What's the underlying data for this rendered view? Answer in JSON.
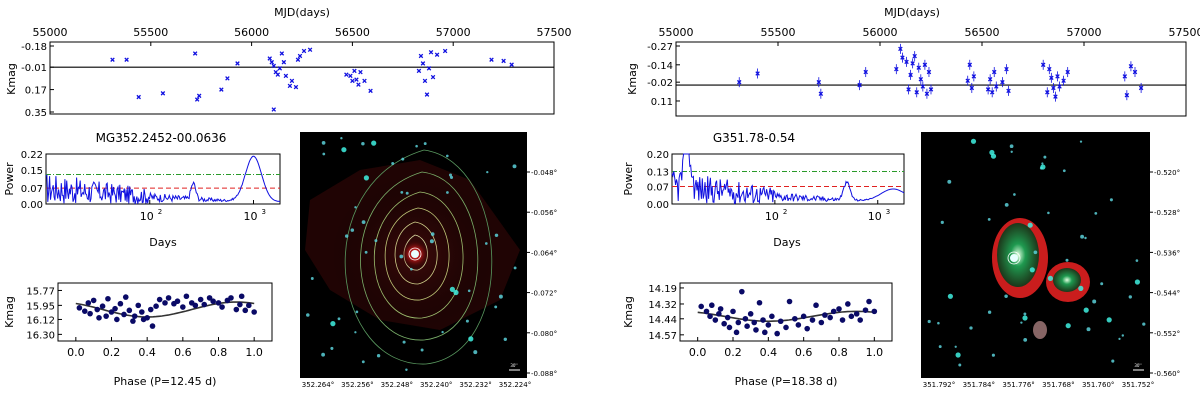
{
  "chart_data": [
    {
      "id": "left_lightcurve",
      "type": "scatter",
      "xlabel": "MJD(days)",
      "ylabel": "Kmag",
      "xlim": [
        55000,
        57500
      ],
      "xticks": [
        55000,
        55500,
        56000,
        56500,
        57000,
        57500
      ],
      "ylim": [
        0.35,
        -0.18
      ],
      "yticks": [
        "-0.18",
        "-0.01",
        "0.17",
        "0.35"
      ],
      "baseline": -0.01,
      "color": "#1010e0",
      "points": [
        [
          55310,
          -0.07
        ],
        [
          55380,
          -0.07
        ],
        [
          55440,
          0.23
        ],
        [
          55560,
          0.2
        ],
        [
          55720,
          -0.12
        ],
        [
          55740,
          0.22
        ],
        [
          55730,
          0.25
        ],
        [
          55850,
          0.17
        ],
        [
          55880,
          0.08
        ],
        [
          55930,
          -0.04
        ],
        [
          56090,
          -0.08
        ],
        [
          56100,
          -0.05
        ],
        [
          56110,
          -0.02
        ],
        [
          56120,
          0.03
        ],
        [
          56130,
          0.05
        ],
        [
          56140,
          0.0
        ],
        [
          56110,
          0.33
        ],
        [
          56150,
          -0.12
        ],
        [
          56160,
          -0.05
        ],
        [
          56170,
          0.06
        ],
        [
          56190,
          0.14
        ],
        [
          56200,
          0.1
        ],
        [
          56220,
          0.15
        ],
        [
          56230,
          -0.07
        ],
        [
          56240,
          -0.1
        ],
        [
          56260,
          -0.14
        ],
        [
          56290,
          -0.15
        ],
        [
          56470,
          0.05
        ],
        [
          56490,
          0.06
        ],
        [
          56500,
          0.1
        ],
        [
          56510,
          0.02
        ],
        [
          56520,
          0.09
        ],
        [
          56530,
          0.13
        ],
        [
          56540,
          0.03
        ],
        [
          56560,
          0.1
        ],
        [
          56590,
          0.18
        ],
        [
          56830,
          0.02
        ],
        [
          56840,
          -0.1
        ],
        [
          56850,
          -0.04
        ],
        [
          56860,
          0.1
        ],
        [
          56870,
          0.21
        ],
        [
          56880,
          0.0
        ],
        [
          56890,
          -0.13
        ],
        [
          56900,
          0.07
        ],
        [
          56920,
          -0.11
        ],
        [
          56960,
          -0.14
        ],
        [
          57190,
          -0.07
        ],
        [
          57250,
          -0.06
        ],
        [
          57290,
          -0.03
        ]
      ]
    },
    {
      "id": "left_periodogram",
      "type": "line",
      "title": "MG352.2452-00.0636",
      "xlabel": "Days",
      "ylabel": "Power",
      "xscale": "log",
      "xlim": [
        10,
        1800
      ],
      "xticks": [
        100,
        1000
      ],
      "xticklabels": [
        "10",
        "10"
      ],
      "xtick_exponents": [
        "2",
        "3"
      ],
      "ylim": [
        0,
        0.22
      ],
      "yticks": [
        "0.00",
        "0.07",
        "0.15",
        "0.22"
      ],
      "threshold_green": 0.13,
      "threshold_red": 0.07,
      "color": "#1010e0",
      "peak_period": 1000,
      "peak_power": 0.2
    },
    {
      "id": "left_phased",
      "type": "scatter",
      "xlabel": "Phase (P=12.45 d)",
      "ylabel": "Kmag",
      "xlim": [
        -0.1,
        1.1
      ],
      "xticks": [
        "0.0",
        "0.2",
        "0.4",
        "0.6",
        "0.8",
        "1.0"
      ],
      "ylim": [
        16.38,
        15.68
      ],
      "yticks": [
        "15.77",
        "15.95",
        "16.12",
        "16.30"
      ],
      "model_mean": 16.0,
      "model_amplitude": 0.09,
      "color": "#0a0a66",
      "points": [
        [
          0.02,
          15.98
        ],
        [
          0.05,
          16.02
        ],
        [
          0.07,
          15.92
        ],
        [
          0.08,
          16.05
        ],
        [
          0.1,
          15.89
        ],
        [
          0.12,
          16.0
        ],
        [
          0.13,
          16.1
        ],
        [
          0.15,
          15.96
        ],
        [
          0.17,
          16.08
        ],
        [
          0.18,
          15.87
        ],
        [
          0.2,
          16.03
        ],
        [
          0.22,
          15.99
        ],
        [
          0.23,
          16.12
        ],
        [
          0.25,
          15.93
        ],
        [
          0.27,
          16.06
        ],
        [
          0.28,
          15.85
        ],
        [
          0.3,
          16.01
        ],
        [
          0.32,
          16.14
        ],
        [
          0.33,
          16.08
        ],
        [
          0.35,
          15.95
        ],
        [
          0.37,
          16.03
        ],
        [
          0.38,
          16.12
        ],
        [
          0.4,
          16.1
        ],
        [
          0.42,
          16.0
        ],
        [
          0.43,
          16.2
        ],
        [
          0.45,
          15.96
        ],
        [
          0.47,
          15.88
        ],
        [
          0.5,
          15.92
        ],
        [
          0.52,
          15.86
        ],
        [
          0.55,
          15.93
        ],
        [
          0.57,
          15.9
        ],
        [
          0.6,
          15.97
        ],
        [
          0.62,
          15.84
        ],
        [
          0.65,
          15.92
        ],
        [
          0.67,
          15.95
        ],
        [
          0.7,
          15.88
        ],
        [
          0.72,
          15.94
        ],
        [
          0.75,
          15.86
        ],
        [
          0.77,
          15.9
        ],
        [
          0.8,
          15.92
        ],
        [
          0.82,
          15.97
        ],
        [
          0.85,
          15.89
        ],
        [
          0.87,
          15.86
        ],
        [
          0.9,
          16.0
        ],
        [
          0.92,
          15.94
        ],
        [
          0.93,
          15.84
        ],
        [
          0.95,
          16.01
        ],
        [
          0.97,
          15.95
        ],
        [
          1.0,
          16.03
        ]
      ]
    },
    {
      "id": "right_lightcurve",
      "type": "scatter",
      "xlabel": "MJD(days)",
      "ylabel": "Kmag",
      "xlim": [
        55000,
        57500
      ],
      "xticks": [
        55000,
        55500,
        56000,
        56500,
        57000,
        57500
      ],
      "ylim": [
        0.2,
        -0.27
      ],
      "yticks": [
        "-0.27",
        "-0.14",
        "-0.02",
        "0.11"
      ],
      "baseline": 0.0,
      "color": "#1010e0",
      "points": [
        [
          55310,
          -0.02
        ],
        [
          55400,
          -0.08
        ],
        [
          55700,
          -0.02
        ],
        [
          55710,
          0.06
        ],
        [
          55900,
          0.0
        ],
        [
          55930,
          -0.09
        ],
        [
          56080,
          -0.11
        ],
        [
          56100,
          -0.25
        ],
        [
          56110,
          -0.19
        ],
        [
          56130,
          -0.16
        ],
        [
          56140,
          0.03
        ],
        [
          56150,
          -0.07
        ],
        [
          56160,
          -0.15
        ],
        [
          56170,
          -0.2
        ],
        [
          56180,
          0.05
        ],
        [
          56190,
          -0.12
        ],
        [
          56200,
          -0.04
        ],
        [
          56210,
          0.01
        ],
        [
          56220,
          -0.14
        ],
        [
          56230,
          0.06
        ],
        [
          56240,
          -0.09
        ],
        [
          56250,
          0.03
        ],
        [
          56430,
          -0.03
        ],
        [
          56440,
          -0.14
        ],
        [
          56450,
          0.02
        ],
        [
          56460,
          -0.06
        ],
        [
          56530,
          0.03
        ],
        [
          56540,
          -0.04
        ],
        [
          56550,
          0.05
        ],
        [
          56560,
          -0.09
        ],
        [
          56570,
          0.01
        ],
        [
          56600,
          -0.02
        ],
        [
          56620,
          -0.11
        ],
        [
          56630,
          0.04
        ],
        [
          56800,
          -0.14
        ],
        [
          56820,
          0.05
        ],
        [
          56830,
          -0.11
        ],
        [
          56840,
          -0.05
        ],
        [
          56850,
          0.02
        ],
        [
          56860,
          0.08
        ],
        [
          56870,
          -0.06
        ],
        [
          56880,
          0.01
        ],
        [
          56900,
          -0.03
        ],
        [
          56920,
          -0.09
        ],
        [
          57200,
          -0.06
        ],
        [
          57210,
          0.07
        ],
        [
          57230,
          -0.13
        ],
        [
          57250,
          -0.09
        ],
        [
          57280,
          0.02
        ]
      ]
    },
    {
      "id": "right_periodogram",
      "type": "line",
      "title": "G351.78-0.54",
      "xlabel": "Days",
      "ylabel": "Power",
      "xscale": "log",
      "xlim": [
        10,
        1800
      ],
      "xticks": [
        100,
        1000
      ],
      "xticklabels": [
        "10",
        "10"
      ],
      "xtick_exponents": [
        "2",
        "3"
      ],
      "ylim": [
        0,
        0.2
      ],
      "yticks": [
        "0.00",
        "0.07",
        "0.13",
        "0.20"
      ],
      "threshold_green": 0.13,
      "threshold_red": 0.07,
      "color": "#1010e0",
      "peak_period": 14,
      "peak_power": 0.19
    },
    {
      "id": "right_phased",
      "type": "scatter",
      "xlabel": "Phase (P=18.38 d)",
      "ylabel": "Kmag",
      "xlim": [
        -0.1,
        1.1
      ],
      "xticks": [
        "0.0",
        "0.2",
        "0.4",
        "0.6",
        "0.8",
        "1.0"
      ],
      "ylim": [
        14.62,
        14.15
      ],
      "yticks": [
        "14.19",
        "14.32",
        "14.44",
        "14.57"
      ],
      "model_mean": 14.42,
      "model_amplitude": 0.04,
      "color": "#0a0a66",
      "points": [
        [
          0.02,
          14.34
        ],
        [
          0.05,
          14.38
        ],
        [
          0.07,
          14.42
        ],
        [
          0.08,
          14.33
        ],
        [
          0.1,
          14.45
        ],
        [
          0.12,
          14.4
        ],
        [
          0.13,
          14.36
        ],
        [
          0.15,
          14.48
        ],
        [
          0.17,
          14.43
        ],
        [
          0.18,
          14.51
        ],
        [
          0.2,
          14.38
        ],
        [
          0.22,
          14.55
        ],
        [
          0.23,
          14.47
        ],
        [
          0.25,
          14.22
        ],
        [
          0.27,
          14.44
        ],
        [
          0.28,
          14.5
        ],
        [
          0.3,
          14.4
        ],
        [
          0.32,
          14.47
        ],
        [
          0.33,
          14.53
        ],
        [
          0.35,
          14.31
        ],
        [
          0.37,
          14.45
        ],
        [
          0.38,
          14.55
        ],
        [
          0.4,
          14.49
        ],
        [
          0.42,
          14.42
        ],
        [
          0.45,
          14.56
        ],
        [
          0.47,
          14.46
        ],
        [
          0.5,
          14.51
        ],
        [
          0.52,
          14.3
        ],
        [
          0.55,
          14.44
        ],
        [
          0.57,
          14.49
        ],
        [
          0.6,
          14.42
        ],
        [
          0.62,
          14.52
        ],
        [
          0.65,
          14.45
        ],
        [
          0.67,
          14.33
        ],
        [
          0.7,
          14.47
        ],
        [
          0.72,
          14.41
        ],
        [
          0.75,
          14.43
        ],
        [
          0.77,
          14.38
        ],
        [
          0.8,
          14.36
        ],
        [
          0.82,
          14.45
        ],
        [
          0.85,
          14.32
        ],
        [
          0.87,
          14.42
        ],
        [
          0.9,
          14.4
        ],
        [
          0.92,
          14.45
        ],
        [
          0.95,
          14.37
        ],
        [
          0.97,
          14.3
        ],
        [
          1.0,
          14.38
        ]
      ]
    },
    {
      "id": "left_image",
      "type": "heatmap",
      "yticks": [
        "-0.048°",
        "-0.056°",
        "-0.064°",
        "-0.072°",
        "-0.080°",
        "-0.088°"
      ],
      "xticks": [
        "352.264°",
        "352.256°",
        "352.248°",
        "352.240°",
        "352.232°",
        "352.224°"
      ],
      "scalebar": "30''"
    },
    {
      "id": "right_image",
      "type": "heatmap",
      "yticks": [
        "-0.520°",
        "-0.528°",
        "-0.536°",
        "-0.544°",
        "-0.552°",
        "-0.560°"
      ],
      "xticks": [
        "351.792°",
        "351.784°",
        "351.776°",
        "351.768°",
        "351.760°",
        "351.752°"
      ],
      "scalebar": "30''"
    }
  ]
}
